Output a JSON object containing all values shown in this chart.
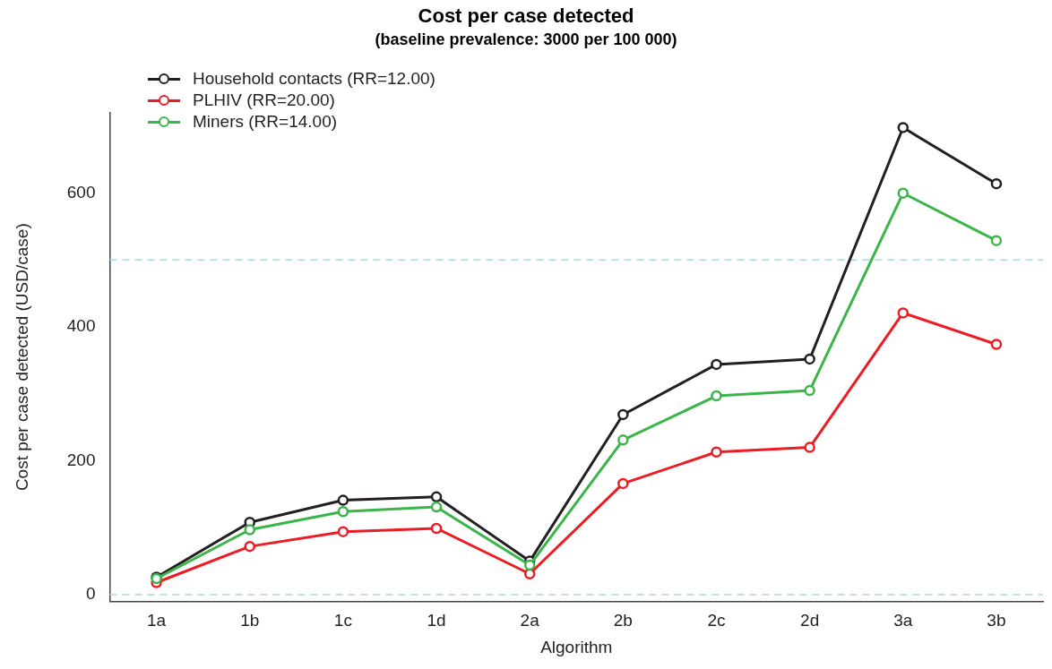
{
  "chart_data": {
    "type": "line",
    "title": "Cost per case detected",
    "subtitle": "(baseline prevalence: 3000 per 100 000)",
    "xlabel": "Algorithm",
    "ylabel": "Cost per case detected (USD/case)",
    "categories": [
      "1a",
      "1b",
      "1c",
      "1d",
      "2a",
      "2b",
      "2c",
      "2d",
      "3a",
      "3b"
    ],
    "series": [
      {
        "name": "Household contacts (RR=12.00)",
        "color": "#231f20",
        "values": [
          26,
          108,
          141,
          146,
          50,
          269,
          344,
          352,
          698,
          614
        ]
      },
      {
        "name": "PLHIV (RR=20.00)",
        "color": "#ed1c24",
        "values": [
          18,
          72,
          94,
          99,
          31,
          166,
          213,
          220,
          421,
          374
        ]
      },
      {
        "name": "Miners (RR=14.00)",
        "color": "#39b54a",
        "values": [
          24,
          97,
          124,
          131,
          44,
          231,
          297,
          305,
          600,
          529
        ]
      }
    ],
    "ylim": [
      -10,
      720
    ],
    "yticks": [
      0,
      200,
      400,
      600
    ],
    "grid": false,
    "legend": "top left",
    "marker": "circle",
    "line_style": "solid",
    "ref_lines": [
      {
        "axis": "y",
        "value": 500,
        "color": "#a6d8e8",
        "line_style": "dashed"
      },
      {
        "axis": "y",
        "value": 0,
        "color": "#a6d8e8",
        "line_style": "dashed"
      }
    ]
  }
}
